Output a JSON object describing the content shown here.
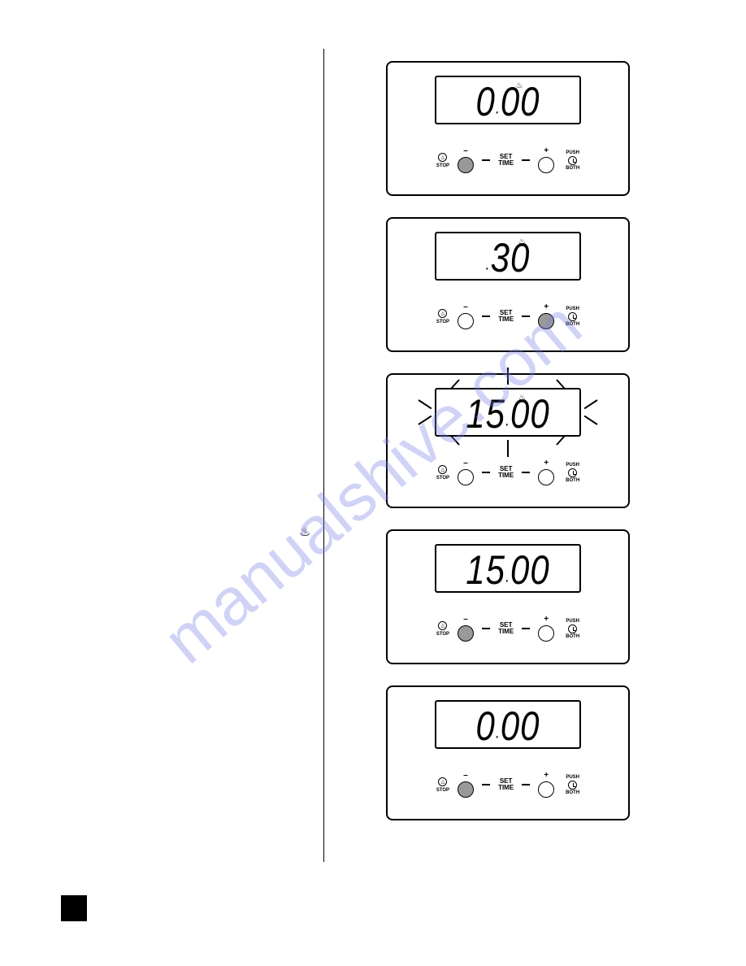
{
  "watermark_text": "manualshive.com",
  "watermark_color": "rgba(120,130,230,0.35)",
  "page_number_bg": "#000000",
  "left_heat_icon": "♨",
  "controls": {
    "minus": "–",
    "plus": "+",
    "stop": "STOP",
    "set_time_line1": "SET",
    "set_time_line2": "TIME",
    "push": "PUSH",
    "both": "BOTH",
    "bell_glyph": "△"
  },
  "panels": [
    {
      "display": "0.00",
      "heat_icon": true,
      "heat_pos": "mid",
      "minus_filled": true,
      "plus_filled": false,
      "flashing": false
    },
    {
      "display": ".30",
      "heat_icon": true,
      "heat_pos": "right",
      "minus_filled": false,
      "plus_filled": true,
      "flashing": false
    },
    {
      "display": "15.00",
      "heat_icon": true,
      "heat_pos": "right",
      "minus_filled": false,
      "plus_filled": false,
      "flashing": true
    },
    {
      "display": "15.00",
      "heat_icon": false,
      "heat_pos": "mid",
      "minus_filled": true,
      "plus_filled": false,
      "flashing": false
    },
    {
      "display": "0.00",
      "heat_icon": false,
      "heat_pos": "mid",
      "minus_filled": true,
      "plus_filled": false,
      "flashing": false
    }
  ]
}
